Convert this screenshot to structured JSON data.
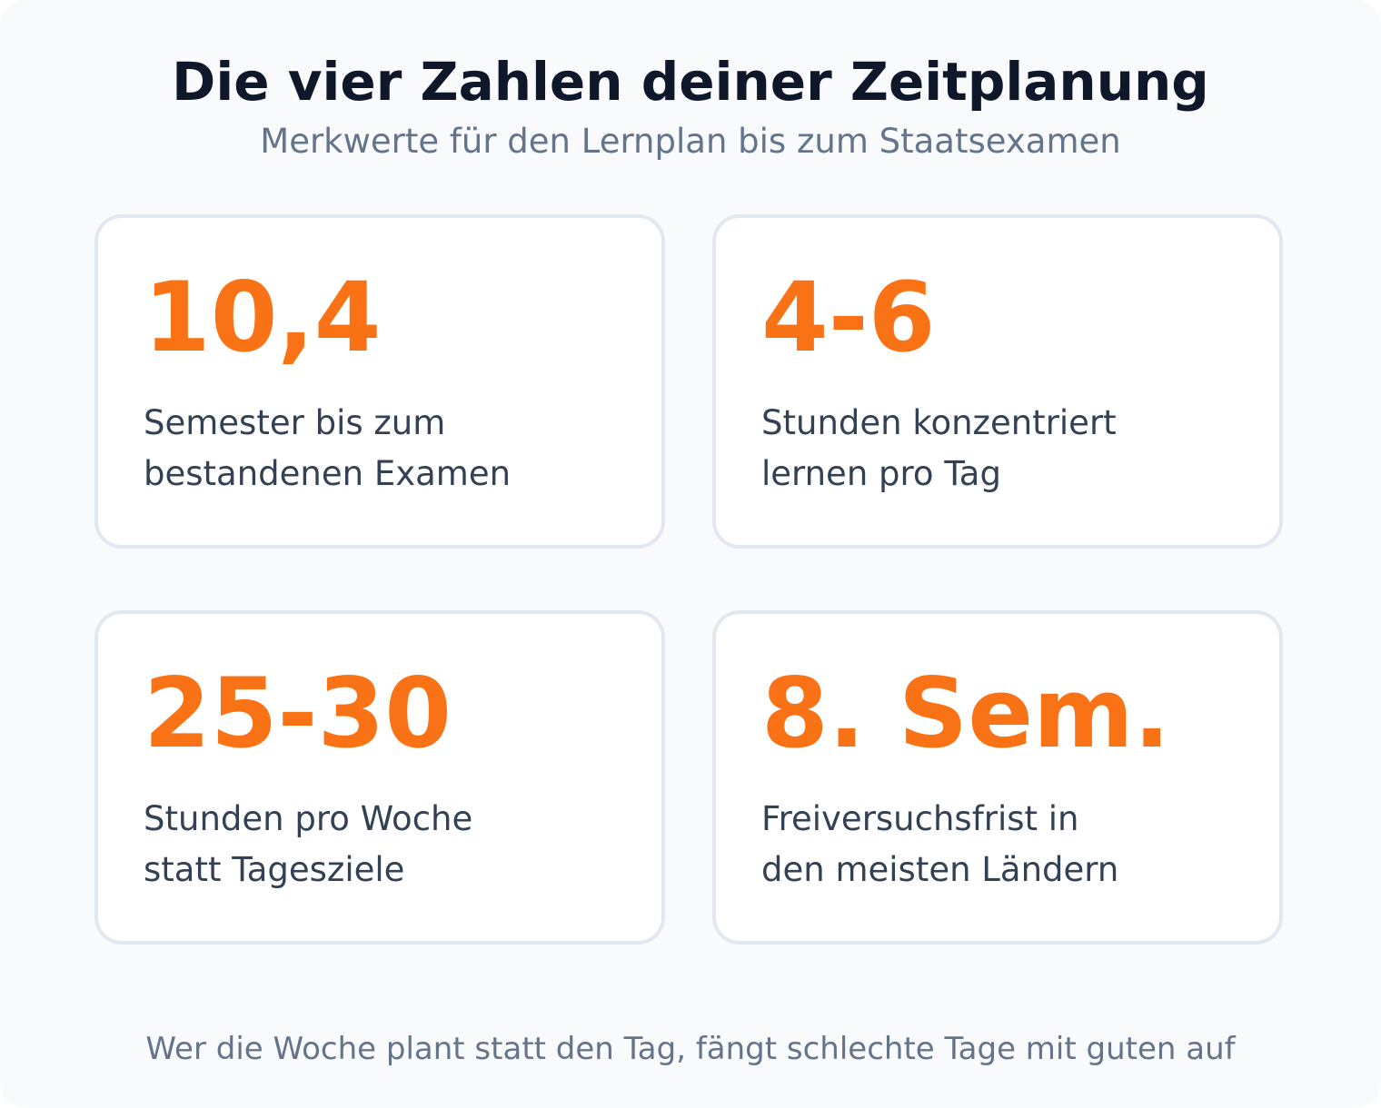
{
  "header": {
    "title": "Die vier Zahlen deiner Zeitplanung",
    "subtitle": "Merkwerte für den Lernplan bis zum Staatsexamen"
  },
  "cards": [
    {
      "value": "10,4",
      "label_lines": [
        "Semester bis zum",
        "bestandenen Examen"
      ]
    },
    {
      "value": "4-6",
      "label_lines": [
        "Stunden konzentriert",
        "lernen pro Tag"
      ]
    },
    {
      "value": "25-30",
      "label_lines": [
        "Stunden pro Woche",
        "statt Tagesziele"
      ]
    },
    {
      "value": "8. Sem.",
      "label_lines": [
        "Freiversuchsfrist in",
        "den meisten Ländern"
      ]
    }
  ],
  "footer": {
    "text": "Wer die Woche plant statt den Tag, fängt schlechte Tage mit guten auf"
  },
  "colors": {
    "accent": "#f97316",
    "title": "#0f172a",
    "muted": "#64748b",
    "body_text": "#334155",
    "card_border": "#e2e8f0",
    "background": "#f8fafc"
  }
}
